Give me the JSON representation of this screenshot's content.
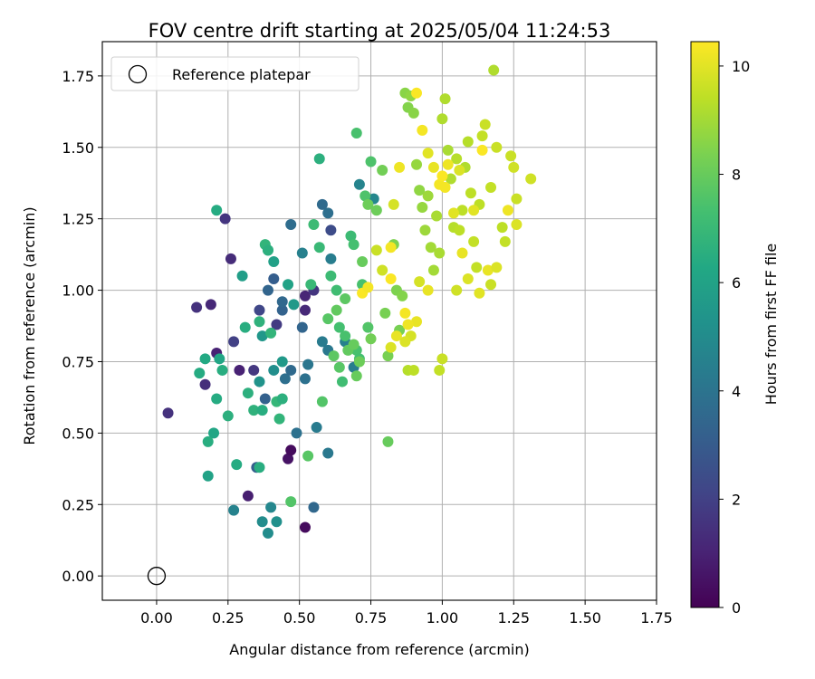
{
  "chart_data": {
    "type": "scatter",
    "title": "FOV centre drift starting at 2025/05/04 11:24:53",
    "xlabel": "Angular distance from reference (arcmin)",
    "ylabel": "Rotation from reference (arcmin)",
    "xlim": [
      -0.19,
      1.75
    ],
    "ylim": [
      -0.085,
      1.87
    ],
    "xticks": [
      "0.00",
      "0.25",
      "0.50",
      "0.75",
      "1.00",
      "1.25",
      "1.50",
      "1.75"
    ],
    "yticks": [
      "0.00",
      "0.25",
      "0.50",
      "0.75",
      "1.00",
      "1.25",
      "1.50",
      "1.75"
    ],
    "grid": true,
    "legend": {
      "placement": "upper-left",
      "entries": [
        "Reference platepar"
      ]
    },
    "reference": {
      "label": "Reference platepar",
      "x": 0.0,
      "y": 0.0,
      "marker": "hollow-circle"
    },
    "colorbar": {
      "label": "Hours from first FF file",
      "min": 0,
      "max": 10.45,
      "colormap": "viridis",
      "ticks": [
        "0",
        "2",
        "4",
        "6",
        "8",
        "10"
      ]
    },
    "series": [
      {
        "color_by": "hours",
        "points": [
          [
            0.04,
            0.57,
            1.5
          ],
          [
            0.14,
            0.94,
            1.5
          ],
          [
            0.19,
            0.95,
            1.2
          ],
          [
            0.17,
            0.67,
            1.4
          ],
          [
            0.21,
            0.78,
            1.0
          ],
          [
            0.24,
            1.25,
            1.6
          ],
          [
            0.26,
            1.11,
            1.3
          ],
          [
            0.27,
            0.82,
            2.0
          ],
          [
            0.29,
            0.72,
            1.0
          ],
          [
            0.32,
            0.28,
            0.9
          ],
          [
            0.34,
            0.72,
            1.7
          ],
          [
            0.36,
            0.93,
            2.2
          ],
          [
            0.42,
            0.88,
            1.8
          ],
          [
            0.46,
            0.41,
            0.5
          ],
          [
            0.47,
            0.44,
            0.3
          ],
          [
            0.52,
            0.17,
            0.3
          ],
          [
            0.52,
            0.93,
            1.2
          ],
          [
            0.52,
            0.98,
            1.1
          ],
          [
            0.55,
            1.0,
            1.6
          ],
          [
            0.61,
            1.21,
            2.4
          ],
          [
            0.41,
            1.04,
            3.1
          ],
          [
            0.44,
            0.93,
            3.3
          ],
          [
            0.47,
            1.23,
            3.7
          ],
          [
            0.51,
            0.87,
            3.4
          ],
          [
            0.58,
            1.3,
            3.6
          ],
          [
            0.6,
            1.27,
            3.8
          ],
          [
            0.35,
            0.38,
            3.1
          ],
          [
            0.38,
            0.62,
            3.2
          ],
          [
            0.39,
            1.0,
            3.4
          ],
          [
            0.44,
            0.96,
            3.5
          ],
          [
            0.45,
            0.69,
            3.8
          ],
          [
            0.47,
            0.72,
            3.6
          ],
          [
            0.52,
            0.69,
            3.9
          ],
          [
            0.53,
            0.74,
            4.1
          ],
          [
            0.49,
            0.5,
            3.9
          ],
          [
            0.55,
            0.24,
            3.5
          ],
          [
            0.58,
            0.82,
            4.3
          ],
          [
            0.6,
            0.79,
            4.2
          ],
          [
            0.6,
            0.43,
            4.2
          ],
          [
            0.61,
            1.11,
            4.4
          ],
          [
            0.66,
            0.82,
            4.5
          ],
          [
            0.69,
            0.73,
            4.4
          ],
          [
            0.71,
            1.37,
            4.7
          ],
          [
            0.76,
            1.32,
            4.8
          ],
          [
            0.56,
            0.52,
            4.3
          ],
          [
            0.51,
            1.13,
            4.5
          ],
          [
            0.27,
            0.23,
            4.6
          ],
          [
            0.4,
            0.24,
            4.8
          ],
          [
            0.37,
            0.19,
            5.0
          ],
          [
            0.42,
            0.19,
            5.2
          ],
          [
            0.39,
            0.15,
            5.0
          ],
          [
            0.36,
            0.68,
            5.3
          ],
          [
            0.41,
            0.72,
            5.1
          ],
          [
            0.44,
            0.75,
            5.6
          ],
          [
            0.37,
            0.84,
            5.5
          ],
          [
            0.48,
            0.95,
            5.6
          ],
          [
            0.3,
            1.05,
            5.8
          ],
          [
            0.39,
            1.14,
            5.7
          ],
          [
            0.41,
            1.1,
            5.9
          ],
          [
            0.46,
            1.02,
            6.0
          ],
          [
            0.18,
            0.35,
            6.0
          ],
          [
            0.2,
            0.5,
            6.2
          ],
          [
            0.15,
            0.71,
            6.4
          ],
          [
            0.17,
            0.76,
            6.3
          ],
          [
            0.21,
            0.62,
            6.4
          ],
          [
            0.22,
            0.76,
            6.2
          ],
          [
            0.23,
            0.72,
            6.5
          ],
          [
            0.25,
            0.56,
            6.6
          ],
          [
            0.28,
            0.39,
            6.4
          ],
          [
            0.31,
            0.87,
            6.5
          ],
          [
            0.32,
            0.64,
            6.6
          ],
          [
            0.34,
            0.58,
            6.7
          ],
          [
            0.36,
            0.89,
            6.7
          ],
          [
            0.37,
            0.58,
            6.5
          ],
          [
            0.38,
            1.16,
            6.8
          ],
          [
            0.39,
            1.14,
            6.6
          ],
          [
            0.4,
            0.85,
            6.8
          ],
          [
            0.42,
            0.61,
            6.9
          ],
          [
            0.43,
            0.55,
            6.8
          ],
          [
            0.44,
            0.62,
            6.6
          ],
          [
            0.36,
            0.38,
            6.5
          ],
          [
            0.18,
            0.47,
            6.5
          ],
          [
            0.21,
            1.28,
            6.4
          ],
          [
            0.57,
            1.46,
            6.6
          ],
          [
            0.54,
            1.02,
            7.0
          ],
          [
            0.55,
            1.23,
            7.1
          ],
          [
            0.57,
            1.15,
            7.0
          ],
          [
            0.61,
            1.05,
            7.1
          ],
          [
            0.63,
            1.0,
            7.2
          ],
          [
            0.64,
            0.87,
            7.3
          ],
          [
            0.65,
            0.68,
            7.2
          ],
          [
            0.66,
            0.84,
            7.4
          ],
          [
            0.68,
            1.19,
            7.1
          ],
          [
            0.69,
            1.16,
            7.3
          ],
          [
            0.7,
            0.79,
            7.4
          ],
          [
            0.71,
            0.76,
            7.3
          ],
          [
            0.72,
            1.02,
            7.4
          ],
          [
            0.73,
            1.33,
            7.5
          ],
          [
            0.74,
            0.87,
            7.6
          ],
          [
            0.75,
            1.45,
            7.5
          ],
          [
            0.7,
            1.55,
            7.4
          ],
          [
            0.47,
            0.26,
            7.6
          ],
          [
            0.53,
            0.42,
            7.7
          ],
          [
            0.58,
            0.61,
            7.6
          ],
          [
            0.6,
            0.9,
            7.7
          ],
          [
            0.62,
            0.77,
            7.8
          ],
          [
            0.63,
            0.93,
            7.9
          ],
          [
            0.64,
            0.73,
            7.7
          ],
          [
            0.66,
            0.97,
            7.8
          ],
          [
            0.67,
            0.79,
            7.9
          ],
          [
            0.69,
            0.81,
            8.0
          ],
          [
            0.7,
            0.7,
            8.0
          ],
          [
            0.71,
            0.75,
            8.1
          ],
          [
            0.72,
            1.1,
            8.0
          ],
          [
            0.74,
            1.3,
            8.1
          ],
          [
            0.75,
            0.83,
            8.2
          ],
          [
            0.77,
            1.28,
            8.1
          ],
          [
            0.79,
            1.42,
            8.2
          ],
          [
            0.8,
            0.92,
            8.3
          ],
          [
            0.81,
            0.77,
            8.3
          ],
          [
            0.81,
            0.47,
            8.0
          ],
          [
            0.83,
            1.16,
            8.4
          ],
          [
            0.84,
            1.0,
            8.4
          ],
          [
            0.85,
            0.86,
            8.3
          ],
          [
            0.86,
            0.98,
            8.5
          ],
          [
            0.87,
            1.69,
            8.6
          ],
          [
            0.88,
            1.64,
            8.5
          ],
          [
            0.89,
            1.68,
            8.7
          ],
          [
            0.9,
            1.62,
            8.6
          ],
          [
            0.91,
            1.44,
            8.8
          ],
          [
            0.92,
            1.35,
            8.7
          ],
          [
            0.93,
            1.29,
            8.8
          ],
          [
            0.94,
            1.21,
            8.9
          ],
          [
            0.95,
            1.33,
            8.9
          ],
          [
            0.96,
            1.15,
            9.0
          ],
          [
            0.97,
            1.07,
            9.0
          ],
          [
            0.98,
            1.26,
            9.1
          ],
          [
            0.99,
            1.13,
            9.1
          ],
          [
            1.0,
            1.6,
            9.2
          ],
          [
            1.01,
            1.67,
            9.2
          ],
          [
            1.02,
            1.49,
            9.1
          ],
          [
            1.03,
            1.39,
            9.2
          ],
          [
            1.04,
            1.22,
            9.3
          ],
          [
            1.05,
            1.46,
            9.3
          ],
          [
            1.06,
            1.21,
            9.4
          ],
          [
            1.07,
            1.28,
            9.4
          ],
          [
            1.08,
            1.43,
            9.2
          ],
          [
            1.09,
            1.52,
            9.3
          ],
          [
            1.1,
            1.34,
            9.4
          ],
          [
            1.11,
            1.17,
            9.5
          ],
          [
            1.12,
            1.08,
            9.5
          ],
          [
            1.13,
            1.3,
            9.4
          ],
          [
            1.14,
            1.54,
            9.5
          ],
          [
            1.15,
            1.58,
            9.6
          ],
          [
            1.17,
            1.36,
            9.5
          ],
          [
            1.18,
            1.77,
            9.2
          ],
          [
            1.19,
            1.5,
            9.6
          ],
          [
            1.21,
            1.22,
            9.4
          ],
          [
            1.22,
            1.17,
            9.5
          ],
          [
            1.24,
            1.47,
            9.6
          ],
          [
            1.25,
            1.43,
            9.7
          ],
          [
            1.26,
            1.32,
            9.6
          ],
          [
            1.31,
            1.39,
            9.7
          ],
          [
            1.17,
            1.02,
            9.6
          ],
          [
            1.05,
            1.0,
            9.7
          ],
          [
            0.99,
            0.72,
            9.5
          ],
          [
            1.0,
            0.76,
            9.6
          ],
          [
            0.88,
            0.72,
            9.3
          ],
          [
            0.9,
            0.72,
            9.4
          ],
          [
            0.89,
            0.84,
            9.8
          ],
          [
            0.91,
            0.89,
            10.1
          ],
          [
            0.88,
            0.88,
            10.2
          ],
          [
            0.84,
            0.84,
            10.1
          ],
          [
            0.82,
            0.8,
            9.9
          ],
          [
            0.87,
            0.82,
            9.9
          ],
          [
            0.79,
            1.07,
            9.7
          ],
          [
            0.77,
            1.14,
            9.6
          ],
          [
            0.83,
            1.3,
            9.8
          ],
          [
            0.85,
            1.43,
            10.2
          ],
          [
            0.93,
            1.56,
            10.3
          ],
          [
            0.91,
            1.69,
            10.4
          ],
          [
            0.95,
            1.48,
            10.0
          ],
          [
            0.97,
            1.43,
            10.1
          ],
          [
            0.99,
            1.37,
            10.3
          ],
          [
            1.0,
            1.4,
            10.4
          ],
          [
            1.01,
            1.36,
            10.3
          ],
          [
            1.02,
            1.44,
            10.2
          ],
          [
            1.04,
            1.27,
            10.0
          ],
          [
            1.06,
            1.42,
            9.9
          ],
          [
            1.07,
            1.13,
            10.1
          ],
          [
            1.09,
            1.04,
            9.9
          ],
          [
            1.11,
            1.28,
            10.0
          ],
          [
            1.14,
            1.49,
            10.4
          ],
          [
            1.16,
            1.07,
            10.1
          ],
          [
            1.19,
            1.08,
            9.9
          ],
          [
            1.23,
            1.28,
            10.2
          ],
          [
            1.26,
            1.23,
            9.9
          ],
          [
            1.13,
            0.99,
            10.0
          ],
          [
            0.95,
            1.0,
            10.1
          ],
          [
            0.92,
            1.03,
            9.8
          ],
          [
            0.87,
            0.92,
            10.3
          ],
          [
            0.82,
            1.15,
            10.3
          ],
          [
            0.82,
            1.04,
            10.4
          ],
          [
            0.72,
            0.99,
            10.4
          ],
          [
            0.74,
            1.01,
            10.3
          ]
        ]
      }
    ]
  }
}
